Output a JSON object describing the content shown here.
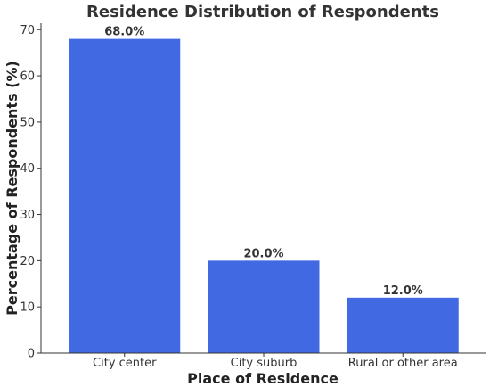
{
  "chart_data": {
    "type": "bar",
    "title": "Residence Distribution of Respondents",
    "xlabel": "Place of Residence",
    "ylabel": "Percentage of Respondents (%)",
    "categories": [
      "City center",
      "City suburb",
      "Rural or other area"
    ],
    "values": [
      68.0,
      20.0,
      12.0
    ],
    "data_labels": [
      "68.0%",
      "20.0%",
      "12.0%"
    ],
    "ylim": [
      0,
      71.4
    ],
    "yticks": [
      0,
      10,
      20,
      30,
      40,
      50,
      60,
      70
    ],
    "grid": false,
    "bar_color": "#4169E1"
  }
}
